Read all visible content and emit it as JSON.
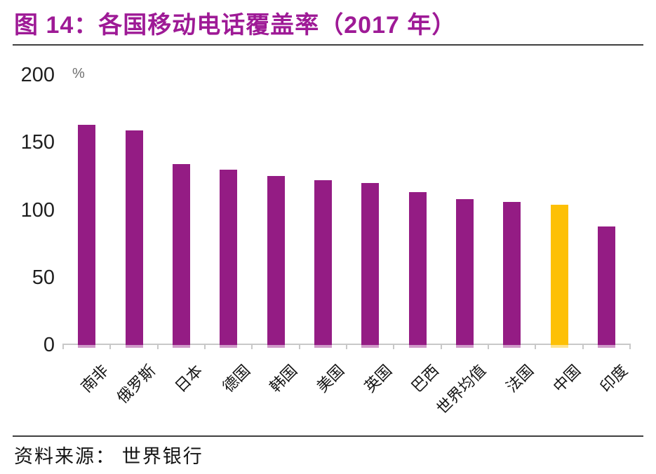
{
  "figure_title": "图 14：各国移动电话覆盖率（2017 年）",
  "source_label": "资料来源：  世界银行",
  "colors": {
    "title": "#9e1a96",
    "bar": "#941c84",
    "highlight_bar": "#fdc005",
    "axis": "#c8c8c8",
    "rule": "#3f3f3f",
    "tick_text": "#1f1f1f"
  },
  "chart_data": {
    "type": "bar",
    "title": "各国移动电话覆盖率（2017 年）",
    "xlabel": "",
    "ylabel": "%",
    "unit": "%",
    "categories": [
      "南非",
      "俄罗斯",
      "日本",
      "德国",
      "韩国",
      "美国",
      "英国",
      "巴西",
      "世界均值",
      "法国",
      "中国",
      "印度"
    ],
    "values": [
      163,
      159,
      134,
      130,
      125,
      122,
      120,
      113,
      108,
      106,
      104,
      88
    ],
    "highlight_category": "中国",
    "highlight_index": 10,
    "ylim": [
      0,
      200
    ],
    "yticks": [
      0,
      50,
      100,
      150,
      200
    ],
    "grid": false,
    "legend_position": "none"
  }
}
